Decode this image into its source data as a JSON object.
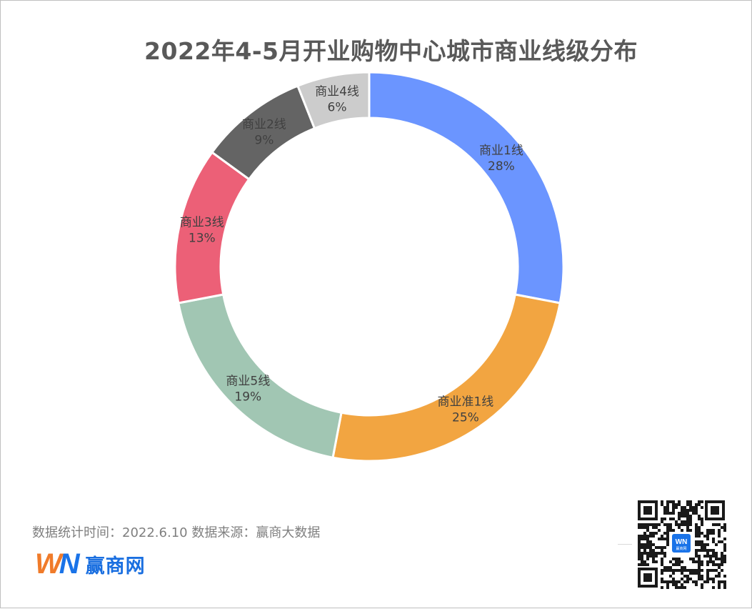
{
  "colors": {
    "slices": [
      "#6b95ff",
      "#f2a541",
      "#a1c6b3",
      "#ec6077",
      "#646464",
      "#cccccc"
    ],
    "title": "#595959",
    "note": "#7f7f7f",
    "logo_orange": "#f07b2a",
    "logo_blue": "#1a73e8"
  },
  "chart_data": {
    "type": "pie",
    "title": "2022年4-5月开业购物中心城市商业线级分布",
    "variant": "donut",
    "start_angle_deg": 0,
    "direction": "clockwise",
    "slices": [
      {
        "label": "商业1线",
        "value": 28,
        "value_label": "28%"
      },
      {
        "label": "商业准1线",
        "value": 25,
        "value_label": "25%"
      },
      {
        "label": "商业5线",
        "value": 19,
        "value_label": "19%"
      },
      {
        "label": "商业3线",
        "value": 13,
        "value_label": "13%"
      },
      {
        "label": "商业2线",
        "value": 9,
        "value_label": "9%"
      },
      {
        "label": "商业4线",
        "value": 6,
        "value_label": "6%"
      }
    ]
  },
  "footer": {
    "note": "数据统计时间：2022.6.10  数据来源：赢商大数据"
  },
  "logo": {
    "mark_w": "W",
    "mark_n": "N",
    "text": "赢商网"
  },
  "qr_badge": {
    "mark": "WN",
    "text": "赢商网"
  }
}
